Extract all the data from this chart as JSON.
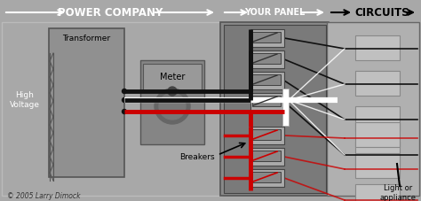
{
  "bg_color": "#a8a8a8",
  "power_company_label": "POWER COMPANY",
  "your_panel_label": "YOUR PANEL",
  "circuits_label": "CIRCUITS",
  "transformer_label": "Transformer",
  "meter_label": "Meter",
  "breakers_label": "Breakers",
  "high_voltage_label": "High\nVoltage",
  "light_appliance_label": "Light or\nappliance",
  "copyright_label": "© 2005 Larry Dimock",
  "black_wire": "#111111",
  "red_wire": "#cc0000",
  "white_wire": "#ffffff",
  "panel_fill": "#888888",
  "panel_border": "#555555",
  "trans_fill": "#909090",
  "meter_fill": "#858585",
  "breaker_fill": "#aaaaaa",
  "circuit_box_fill": "#c0c0c0",
  "circuit_box_border": "#888888",
  "outer_box_fill": "#b0b0b0",
  "outer_box_border": "#666666"
}
